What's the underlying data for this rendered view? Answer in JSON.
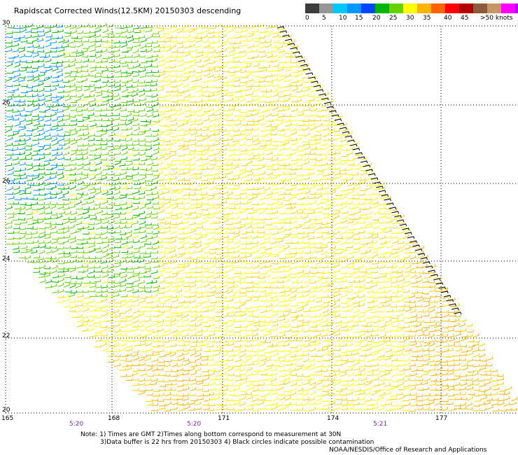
{
  "title": "Rapidscat Corrected Winds(12.5KM) 20150303 descending",
  "scale": {
    "colors": [
      "#3c3c3c",
      "#969696",
      "#00c8ff",
      "#0096ff",
      "#0046ff",
      "#00b400",
      "#64d200",
      "#ffff00",
      "#ffb400",
      "#ff6400",
      "#ff0000",
      "#b40000",
      "#8c5a3c",
      "#c89664",
      "#ff00ff",
      "#b400ff",
      "#6400c8"
    ],
    "labels": [
      "0",
      "5",
      "10",
      "15",
      "20",
      "25",
      "30",
      "35",
      "40",
      "45",
      ">50 knots"
    ]
  },
  "axes": {
    "lat_labels": [
      "30",
      "26",
      "26",
      "24",
      "22",
      "20"
    ],
    "lon_labels": [
      "165",
      "168",
      "171",
      "174",
      "177"
    ],
    "time_labels": [
      "5:20",
      "5:20",
      "5:21"
    ]
  },
  "notes": {
    "line1": "Note: 1) Times are GMT 2)Times along bottom correspond to measurement at 30N",
    "line2": "3)Data buffer is 22 hrs from 20150303 4) Black circles indicate possible contamination",
    "line3": "NOAA/NESDIS/Office of Research and Applications"
  }
}
